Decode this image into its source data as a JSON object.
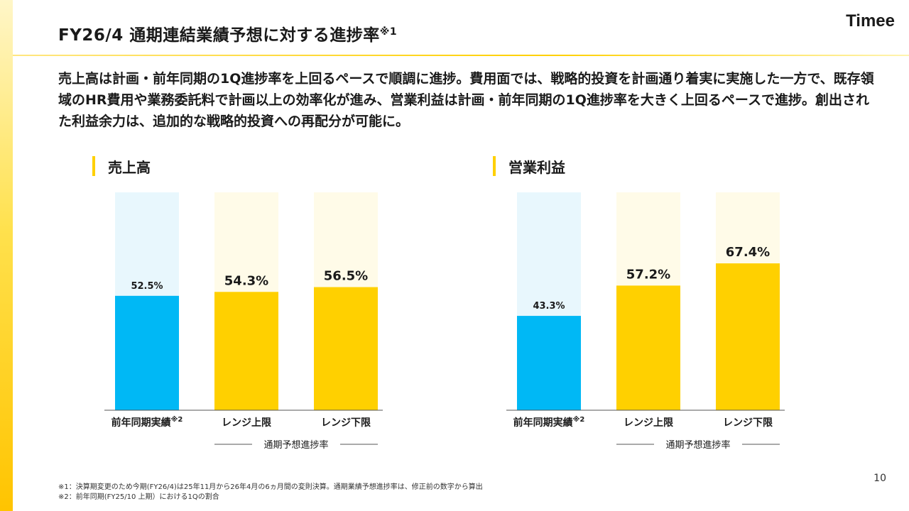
{
  "header": {
    "title": "FY26/4 通期連結業績予想に対する進捗率",
    "title_note": "※1",
    "logo": "Timee"
  },
  "summary": "売上高は計画・前年同期の1Q進捗率を上回るペースで順調に進捗。費用面では、戦略的投資を計画通り着実に実施した一方で、既存領域のHR費用や業務委託料で計画以上の効率化が進み、営業利益は計画・前年同期の1Q進捗率を大きく上回るペースで進捗。創出された利益余力は、追加的な戦略的投資への再配分が可能に。",
  "colors": {
    "prior_year": "#00b8f5",
    "prior_year_bg": "#e8f7fd",
    "forecast": "#ffd000",
    "forecast_bg": "#fffbe8",
    "accent": "#ffd000"
  },
  "chart_data": [
    {
      "type": "bar",
      "title": "売上高",
      "categories": [
        "前年同期実績",
        "レンジ上限",
        "レンジ下限"
      ],
      "category_notes": [
        "※2",
        "",
        ""
      ],
      "values": [
        52.5,
        54.3,
        56.5
      ],
      "value_labels": [
        "52.5%",
        "54.3%",
        "56.5%"
      ],
      "unit": "%",
      "ylim": [
        0,
        100
      ],
      "group_label": "通期予想進捗率",
      "series_type": [
        "prior_year",
        "forecast",
        "forecast"
      ]
    },
    {
      "type": "bar",
      "title": "営業利益",
      "categories": [
        "前年同期実績",
        "レンジ上限",
        "レンジ下限"
      ],
      "category_notes": [
        "※2",
        "",
        ""
      ],
      "values": [
        43.3,
        57.2,
        67.4
      ],
      "value_labels": [
        "43.3%",
        "57.2%",
        "67.4%"
      ],
      "unit": "%",
      "ylim": [
        0,
        100
      ],
      "group_label": "通期予想進捗率",
      "series_type": [
        "prior_year",
        "forecast",
        "forecast"
      ]
    }
  ],
  "footnotes": [
    "※1：決算期変更のため今期(FY26/4)は25年11月から26年4月の6ヵ月間の変則決算。通期業績予想進捗率は、修正前の数字から算出",
    "※2：前年同期(FY25/10 上期）における1Qの割合"
  ],
  "page_number": "10"
}
